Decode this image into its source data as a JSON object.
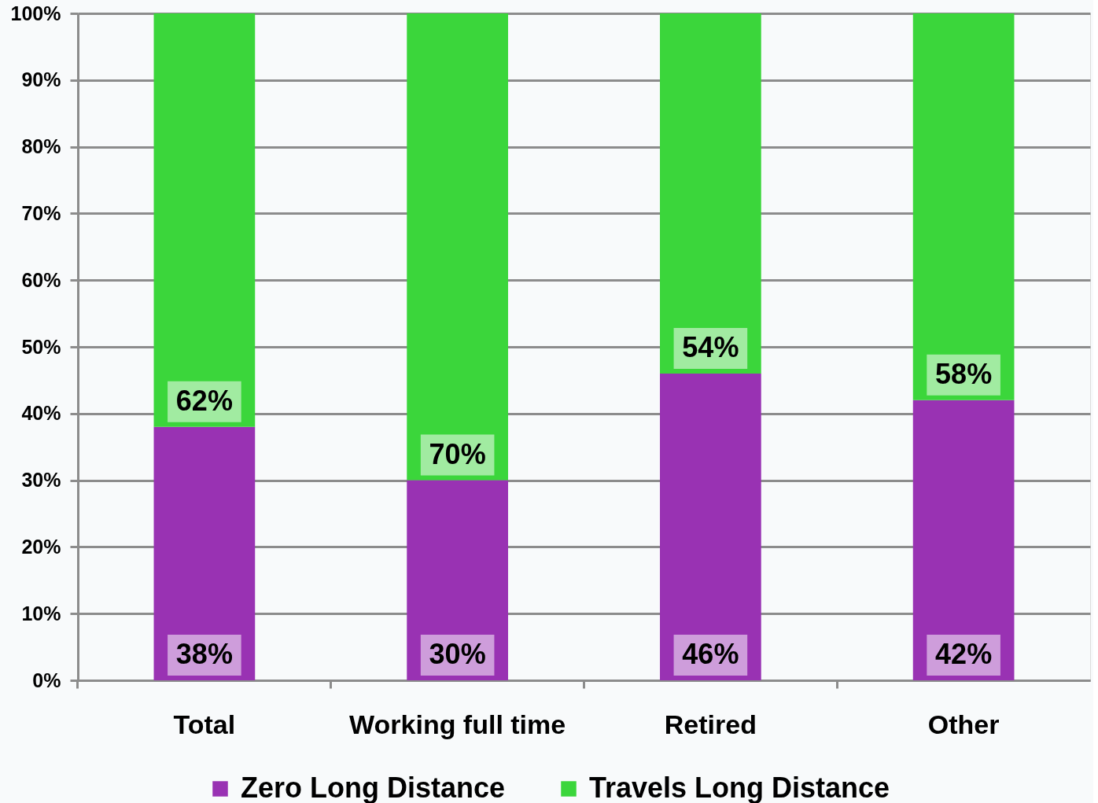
{
  "chart_data": {
    "type": "bar",
    "stacked": true,
    "categories": [
      "Total",
      "Working full time",
      "Retired",
      "Other"
    ],
    "series": [
      {
        "name": "Zero Long Distance",
        "color": "#9932b3",
        "values": [
          38,
          30,
          46,
          42
        ],
        "value_labels": [
          "38%",
          "30%",
          "46%",
          "42%"
        ]
      },
      {
        "name": "Travels Long Distance",
        "color": "#3bd63b",
        "values": [
          62,
          70,
          54,
          58
        ],
        "value_labels": [
          "62%",
          "70%",
          "54%",
          "58%"
        ]
      }
    ],
    "ylim": [
      0,
      100
    ],
    "yticks": [
      {
        "value": 0,
        "label": "0%"
      },
      {
        "value": 10,
        "label": "10%"
      },
      {
        "value": 20,
        "label": "20%"
      },
      {
        "value": 30,
        "label": "30%"
      },
      {
        "value": 40,
        "label": "40%"
      },
      {
        "value": 50,
        "label": "50%"
      },
      {
        "value": 60,
        "label": "60%"
      },
      {
        "value": 70,
        "label": "70%"
      },
      {
        "value": 80,
        "label": "80%"
      },
      {
        "value": 90,
        "label": "90%"
      },
      {
        "value": 100,
        "label": "100%"
      }
    ],
    "grid": "y",
    "legend": "bottom"
  }
}
